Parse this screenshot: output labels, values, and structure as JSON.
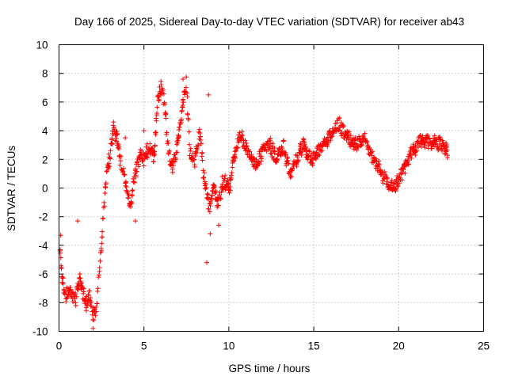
{
  "chart_data": {
    "type": "scatter",
    "title": "Day 166 of 2025, Sidereal Day-to-day VTEC variation (SDTVAR) for receiver ab43",
    "xlabel": "GPS time / hours",
    "ylabel": "SDTVAR / TECUs",
    "xlim": [
      0,
      25
    ],
    "ylim": [
      -10,
      10
    ],
    "xticks": [
      0,
      5,
      10,
      15,
      20,
      25
    ],
    "yticks": [
      -10,
      -8,
      -6,
      -4,
      -2,
      0,
      2,
      4,
      6,
      8,
      10
    ],
    "grid": true,
    "marker": "plus",
    "color": "#ff0000",
    "series": [
      {
        "name": "SDTVAR",
        "trend": [
          [
            0.0,
            -4.0
          ],
          [
            0.2,
            -6.5
          ],
          [
            0.4,
            -7.5
          ],
          [
            0.6,
            -7.0
          ],
          [
            0.8,
            -7.5
          ],
          [
            1.0,
            -7.8
          ],
          [
            1.2,
            -6.0
          ],
          [
            1.4,
            -7.5
          ],
          [
            1.6,
            -8.0
          ],
          [
            1.8,
            -7.5
          ],
          [
            2.0,
            -9.0
          ],
          [
            2.2,
            -8.5
          ],
          [
            2.4,
            -5.5
          ],
          [
            2.6,
            -2.0
          ],
          [
            2.8,
            1.0
          ],
          [
            3.0,
            2.5
          ],
          [
            3.2,
            4.0
          ],
          [
            3.4,
            3.5
          ],
          [
            3.6,
            2.0
          ],
          [
            3.8,
            1.0
          ],
          [
            4.0,
            0.0
          ],
          [
            4.2,
            -1.5
          ],
          [
            4.4,
            0.5
          ],
          [
            4.6,
            1.5
          ],
          [
            4.8,
            2.5
          ],
          [
            5.0,
            2.0
          ],
          [
            5.3,
            3.0
          ],
          [
            5.6,
            2.0
          ],
          [
            5.8,
            6.0
          ],
          [
            6.0,
            7.2
          ],
          [
            6.2,
            6.0
          ],
          [
            6.4,
            3.0
          ],
          [
            6.6,
            1.5
          ],
          [
            6.8,
            2.0
          ],
          [
            7.0,
            3.0
          ],
          [
            7.2,
            5.0
          ],
          [
            7.5,
            7.5
          ],
          [
            7.7,
            2.5
          ],
          [
            8.0,
            2.0
          ],
          [
            8.3,
            4.0
          ],
          [
            8.5,
            1.0
          ],
          [
            8.7,
            -0.5
          ],
          [
            8.9,
            -1.5
          ],
          [
            9.1,
            0.0
          ],
          [
            9.3,
            -1.0
          ],
          [
            9.5,
            -0.5
          ],
          [
            9.8,
            0.5
          ],
          [
            10.0,
            0.0
          ],
          [
            10.3,
            2.0
          ],
          [
            10.6,
            3.5
          ],
          [
            11.0,
            3.0
          ],
          [
            11.3,
            2.0
          ],
          [
            11.6,
            1.5
          ],
          [
            12.0,
            2.5
          ],
          [
            12.4,
            3.0
          ],
          [
            12.8,
            2.0
          ],
          [
            13.2,
            3.0
          ],
          [
            13.6,
            1.0
          ],
          [
            14.0,
            2.0
          ],
          [
            14.4,
            3.0
          ],
          [
            14.8,
            2.0
          ],
          [
            15.2,
            2.5
          ],
          [
            15.6,
            3.0
          ],
          [
            16.0,
            3.8
          ],
          [
            16.5,
            4.5
          ],
          [
            17.0,
            3.5
          ],
          [
            17.5,
            3.0
          ],
          [
            18.0,
            3.5
          ],
          [
            18.5,
            2.0
          ],
          [
            19.0,
            1.0
          ],
          [
            19.4,
            0.3
          ],
          [
            19.8,
            0.2
          ],
          [
            20.2,
            1.0
          ],
          [
            20.6,
            2.0
          ],
          [
            21.0,
            2.8
          ],
          [
            21.4,
            3.5
          ],
          [
            21.8,
            3.0
          ],
          [
            22.2,
            3.3
          ],
          [
            22.6,
            3.0
          ],
          [
            22.9,
            2.5
          ]
        ],
        "outliers": [
          [
            2.0,
            -9.8
          ],
          [
            8.7,
            -5.2
          ],
          [
            8.9,
            -3.2
          ],
          [
            9.4,
            -2.6
          ],
          [
            4.5,
            -2.3
          ],
          [
            5.0,
            4.0
          ],
          [
            7.3,
            7.6
          ],
          [
            8.8,
            6.5
          ],
          [
            3.9,
            3.5
          ],
          [
            0.1,
            -3.3
          ],
          [
            1.1,
            -2.3
          ],
          [
            9.6,
            0.8
          ]
        ]
      }
    ]
  }
}
